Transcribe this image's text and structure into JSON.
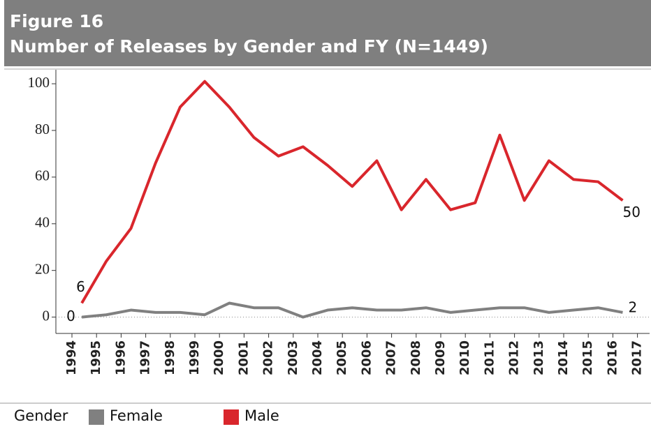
{
  "chart_data": {
    "type": "line",
    "title": "Figure 16",
    "subtitle": "Number of Releases by Gender and FY (N=1449)",
    "categories": [
      "1994",
      "1995",
      "1996",
      "1997",
      "1998",
      "1999",
      "2000",
      "2001",
      "2002",
      "2003",
      "2004",
      "2005",
      "2006",
      "2007",
      "2008",
      "2009",
      "2010",
      "2011",
      "2012",
      "2013",
      "2014",
      "2015",
      "2016",
      "2017"
    ],
    "series": [
      {
        "name": "Female",
        "color": "#808080",
        "values": [
          0,
          1,
          3,
          2,
          2,
          1,
          6,
          4,
          4,
          0,
          3,
          4,
          3,
          3,
          4,
          2,
          3,
          4,
          4,
          2,
          3,
          4,
          2,
          null
        ]
      },
      {
        "name": "Male",
        "color": "#d9262c",
        "values": [
          6,
          24,
          38,
          66,
          90,
          101,
          90,
          77,
          69,
          73,
          65,
          56,
          67,
          46,
          59,
          46,
          49,
          78,
          50,
          67,
          59,
          58,
          50,
          null
        ]
      }
    ],
    "legend_title": "Gender",
    "ylim": [
      -7,
      106
    ],
    "yticks": [
      0,
      20,
      40,
      60,
      80,
      100
    ]
  }
}
